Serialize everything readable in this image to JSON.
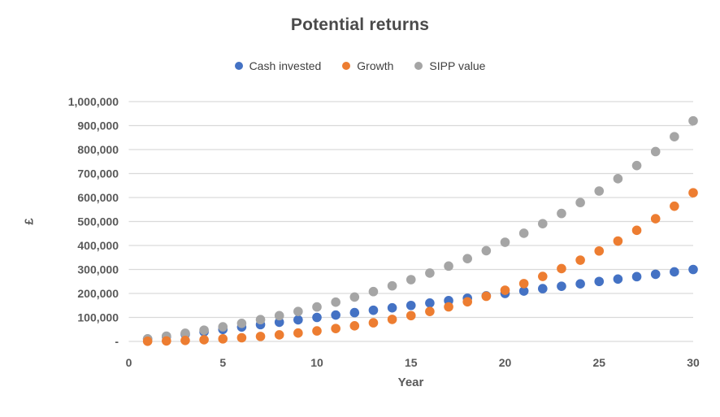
{
  "chart_data": {
    "type": "scatter",
    "title": "Potential returns",
    "xlabel": "Year",
    "ylabel": "£",
    "xlim": [
      0,
      30
    ],
    "ylim": [
      0,
      1000000
    ],
    "grid": true,
    "legend_position": "top",
    "x_ticks": [
      0,
      5,
      10,
      15,
      20,
      25,
      30
    ],
    "y_tick_step": 100000,
    "y_tick_labels": [
      "-",
      "100,000",
      "200,000",
      "300,000",
      "400,000",
      "500,000",
      "600,000",
      "700,000",
      "800,000",
      "900,000",
      "1,000,000"
    ],
    "x": [
      1,
      2,
      3,
      4,
      5,
      6,
      7,
      8,
      9,
      10,
      11,
      12,
      13,
      14,
      15,
      16,
      17,
      18,
      19,
      20,
      21,
      22,
      23,
      24,
      25,
      26,
      27,
      28,
      29,
      30
    ],
    "series": [
      {
        "name": "Cash invested",
        "color": "#4472C4",
        "values": [
          10000,
          20000,
          30000,
          40000,
          50000,
          60000,
          70000,
          80000,
          90000,
          100000,
          110000,
          120000,
          130000,
          140000,
          150000,
          160000,
          170000,
          180000,
          190000,
          200000,
          210000,
          220000,
          230000,
          240000,
          250000,
          260000,
          270000,
          280000,
          290000,
          300000
        ]
      },
      {
        "name": "Growth",
        "color": "#ED7D31",
        "values": [
          650,
          1992,
          4072,
          6936,
          10637,
          15229,
          20769,
          27319,
          34944,
          43716,
          53707,
          64998,
          77673,
          91822,
          107540,
          124930,
          144101,
          165167,
          188253,
          213489,
          241016,
          270982,
          303546,
          338877,
          377154,
          418569,
          463325,
          511642,
          563748,
          619892
        ]
      },
      {
        "name": "SIPP value",
        "color": "#A5A5A5",
        "values": [
          10650,
          21992,
          34072,
          46936,
          60637,
          75229,
          90769,
          107319,
          124944,
          143716,
          163707,
          184998,
          207673,
          231822,
          257540,
          284930,
          314101,
          345167,
          378253,
          413489,
          451016,
          490982,
          533546,
          578877,
          627154,
          678569,
          733325,
          791642,
          853748,
          919892
        ]
      }
    ],
    "style": {
      "grid_color": "#D9D9D9",
      "tick_color": "#595959",
      "title_color": "#4a4a4a",
      "legend_text_color": "#3f3f3f",
      "background": "#FFFFFF"
    }
  }
}
